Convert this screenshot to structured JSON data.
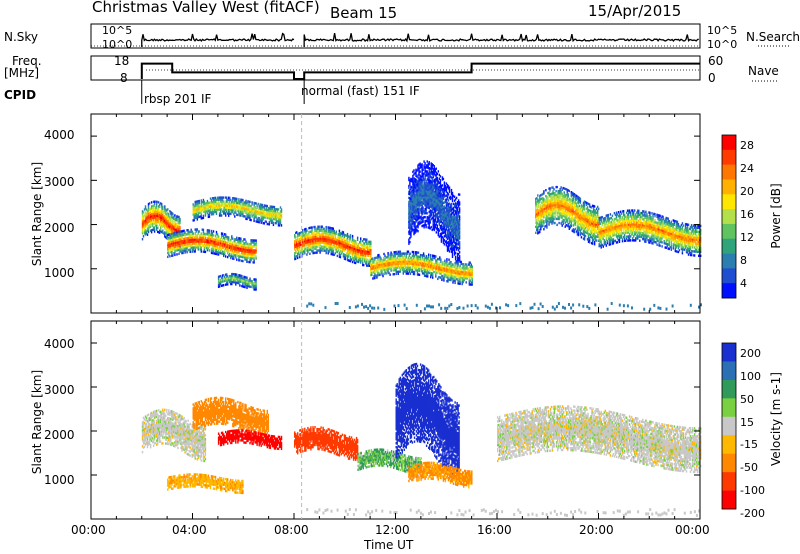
{
  "header": {
    "station": "Christmas Valley West (fitACF)",
    "beam": "Beam 15",
    "date": "15/Apr/2015"
  },
  "params": {
    "nsky_label": "N.Sky",
    "nsearch_label": "N.Search",
    "freq_label": "Freq.",
    "freq_unit": "[MHz]",
    "nave_label": "Nave",
    "cpid_label": "CPID",
    "left_ticks_top": [
      "10^5",
      "10^0"
    ],
    "right_ticks_top": [
      "10^5",
      "10^0"
    ],
    "freq_ticks": [
      "18",
      "8"
    ],
    "nave_ticks": [
      "60",
      "0"
    ],
    "cpid_segments": [
      "rbsp 201 IF",
      "normal (fast) 151 IF"
    ]
  },
  "axes": {
    "y_label": "Slant Range [km]",
    "y_ticks": [
      "4000",
      "3000",
      "2000",
      "1000"
    ],
    "x_label": "Time UT",
    "x_ticks": [
      "00:00",
      "04:00",
      "08:00",
      "12:00",
      "16:00",
      "20:00",
      "00:00"
    ]
  },
  "power_scale": {
    "label": "Power [dB]",
    "ticks": [
      "28",
      "24",
      "20",
      "16",
      "12",
      "8",
      "4"
    ],
    "colors": [
      "#ff0000",
      "#ff3b00",
      "#ff7700",
      "#ffb000",
      "#ffe600",
      "#b3e04a",
      "#5fc45f",
      "#2fa37a",
      "#2b7fb0",
      "#1f4fd0",
      "#0010ff"
    ]
  },
  "velocity_scale": {
    "label": "Velocity [m s-1]",
    "ticks": [
      "200",
      "100",
      "50",
      "15",
      "-15",
      "-50",
      "-100",
      "-200"
    ],
    "colors": [
      "#1a2fd0",
      "#2b6fb5",
      "#2f9a5a",
      "#79d040",
      "#c8c8c8",
      "#ffb800",
      "#ff8800",
      "#ff3a00",
      "#ff0000"
    ]
  },
  "chart_data": [
    {
      "type": "line",
      "panel": "N.Sky / N.Search",
      "x_range_hours": [
        0,
        24
      ],
      "segments": [
        {
          "x": [
            2.0,
            8.0
          ],
          "level": "high"
        },
        {
          "x": [
            8.4,
            24.0
          ],
          "level": "high"
        }
      ]
    },
    {
      "type": "line",
      "panel": "Freq. / Nave",
      "series": [
        {
          "name": "Freq.",
          "x": [
            2.0,
            2.0,
            3.2,
            3.2,
            8.0,
            8.0,
            8.4,
            8.4,
            15.0,
            15.0,
            24.0
          ],
          "y": [
            8,
            15,
            15,
            11,
            11,
            8,
            8,
            11,
            11,
            15,
            15
          ]
        }
      ],
      "ylim": [
        8,
        18
      ]
    },
    {
      "type": "heatmap",
      "panel": "Power",
      "title": "Power [dB]",
      "xlabel": "Time UT",
      "ylabel": "Slant Range [km]",
      "x_range_hours": [
        0,
        24
      ],
      "ylim": [
        0,
        4500
      ],
      "bands": [
        {
          "t": [
            2.0,
            3.5
          ],
          "r_center": 2000,
          "r_width": 700,
          "peak_db": 28
        },
        {
          "t": [
            3.0,
            6.5
          ],
          "r_center": 1500,
          "r_width": 500,
          "peak_db": 28
        },
        {
          "t": [
            4.0,
            7.5
          ],
          "r_center": 2300,
          "r_width": 450,
          "peak_db": 20
        },
        {
          "t": [
            5.0,
            6.5
          ],
          "r_center": 700,
          "r_width": 250,
          "peak_db": 16
        },
        {
          "t": [
            8.0,
            11.0
          ],
          "r_center": 1500,
          "r_width": 600,
          "peak_db": 28
        },
        {
          "t": [
            11.0,
            15.0
          ],
          "r_center": 1000,
          "r_width": 500,
          "peak_db": 24
        },
        {
          "t": [
            12.5,
            14.5
          ],
          "r_center": 2300,
          "r_width": 1500,
          "peak_db": 8
        },
        {
          "t": [
            17.5,
            20.0
          ],
          "r_center": 2200,
          "r_width": 900,
          "peak_db": 24
        },
        {
          "t": [
            20.0,
            24.0
          ],
          "r_center": 1800,
          "r_width": 700,
          "peak_db": 24
        }
      ]
    },
    {
      "type": "heatmap",
      "panel": "Velocity",
      "title": "Velocity [m s-1]",
      "xlabel": "Time UT",
      "ylabel": "Slant Range [km]",
      "x_range_hours": [
        0,
        24
      ],
      "ylim": [
        0,
        4500
      ],
      "bands": [
        {
          "t": [
            2.0,
            4.5
          ],
          "r_center": 1900,
          "r_width": 800,
          "velocity": 0
        },
        {
          "t": [
            4.0,
            7.0
          ],
          "r_center": 2300,
          "r_width": 600,
          "velocity": -80
        },
        {
          "t": [
            5.0,
            7.5
          ],
          "r_center": 1800,
          "r_width": 300,
          "velocity": -200
        },
        {
          "t": [
            3.0,
            6.0
          ],
          "r_center": 800,
          "r_width": 300,
          "velocity": -40
        },
        {
          "t": [
            8.0,
            10.5
          ],
          "r_center": 1700,
          "r_width": 500,
          "velocity": -120
        },
        {
          "t": [
            10.5,
            13.0
          ],
          "r_center": 1300,
          "r_width": 400,
          "velocity": 30
        },
        {
          "t": [
            12.0,
            14.5
          ],
          "r_center": 2200,
          "r_width": 1800,
          "velocity": 200
        },
        {
          "t": [
            12.5,
            15.0
          ],
          "r_center": 1000,
          "r_width": 400,
          "velocity": -60
        },
        {
          "t": [
            16.0,
            24.0
          ],
          "r_center": 1800,
          "r_width": 1000,
          "velocity": 0
        }
      ]
    }
  ]
}
